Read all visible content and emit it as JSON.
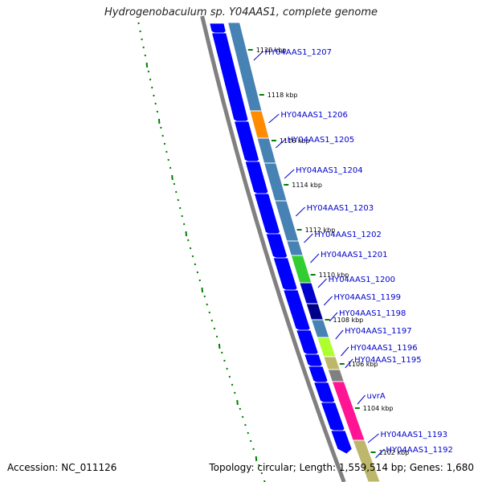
{
  "title": "Hydrogenobaculum sp. Y04AAS1, complete genome",
  "footer": {
    "accession": "Accession: NC_011126",
    "topology": "Topology: circular; Length: 1,559,514 bp; Genes: 1,680"
  },
  "ticks": [
    "1120 kbp",
    "1118 kbp",
    "1116 kbp",
    "1114 kbp",
    "1112 kbp",
    "1110 kbp",
    "1108 kbp",
    "1106 kbp",
    "1104 kbp",
    "1102 kbp"
  ],
  "genes": [
    {
      "label": "HY04AAS1_1207",
      "color": "#4682b4"
    },
    {
      "label": "HY04AAS1_1206",
      "color": "#ff8c00"
    },
    {
      "label": "HY04AAS1_1205",
      "color": "#4682b4"
    },
    {
      "label": "HY04AAS1_1204",
      "color": "#4682b4"
    },
    {
      "label": "HY04AAS1_1203",
      "color": "#4682b4"
    },
    {
      "label": "HY04AAS1_1202",
      "color": "#4682b4"
    },
    {
      "label": "HY04AAS1_1201",
      "color": "#32cd32"
    },
    {
      "label": "HY04AAS1_1200",
      "color": "#0000cd"
    },
    {
      "label": "HY04AAS1_1199",
      "color": "#00008b"
    },
    {
      "label": "HY04AAS1_1198",
      "color": "#4682b4"
    },
    {
      "label": "HY04AAS1_1197",
      "color": "#adff2f"
    },
    {
      "label": "HY04AAS1_1196",
      "color": "#bdb76b"
    },
    {
      "label": "HY04AAS1_1195",
      "color": "#808080"
    },
    {
      "label": "uvrA",
      "color": "#ff1493"
    },
    {
      "label": "HY04AAS1_1193",
      "color": "#ff1493"
    },
    {
      "label": "HY04AAS1_1192",
      "color": "#bdb76b"
    }
  ],
  "colors": {
    "backbone": "#808080",
    "forward_strand": "#0000ff",
    "gc_skew": "#008000",
    "label_line": "#0000cc"
  }
}
